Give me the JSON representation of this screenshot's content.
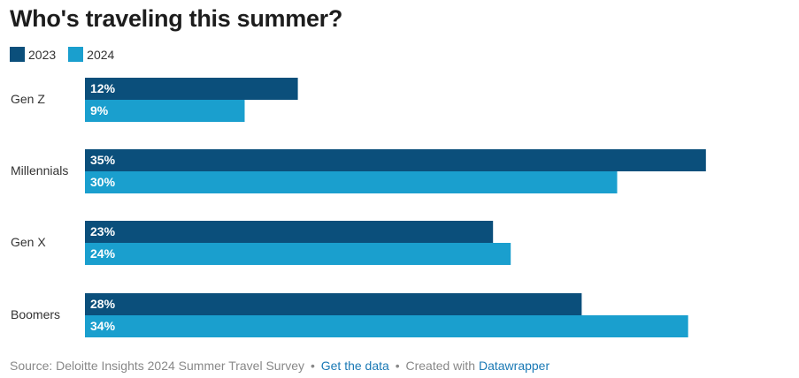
{
  "title": "Who's traveling this summer?",
  "legend": [
    {
      "label": "2023",
      "color": "#0b4f7b"
    },
    {
      "label": "2024",
      "color": "#1a9fce"
    }
  ],
  "chart_data": {
    "type": "bar",
    "orientation": "horizontal",
    "categories": [
      "Gen Z",
      "Millennials",
      "Gen X",
      "Boomers"
    ],
    "series": [
      {
        "name": "2023",
        "values": [
          12,
          35,
          23,
          28
        ],
        "color": "#0b4f7b"
      },
      {
        "name": "2024",
        "values": [
          9,
          30,
          24,
          34
        ],
        "color": "#1a9fce"
      }
    ],
    "value_suffix": "%",
    "xlim": [
      0,
      35
    ],
    "grid": false,
    "legend_position": "top-left"
  },
  "footer": {
    "source": "Source: Deloitte Insights 2024 Summer Travel Survey",
    "get_data": "Get the data",
    "created_with": "Created with",
    "tool": "Datawrapper"
  }
}
